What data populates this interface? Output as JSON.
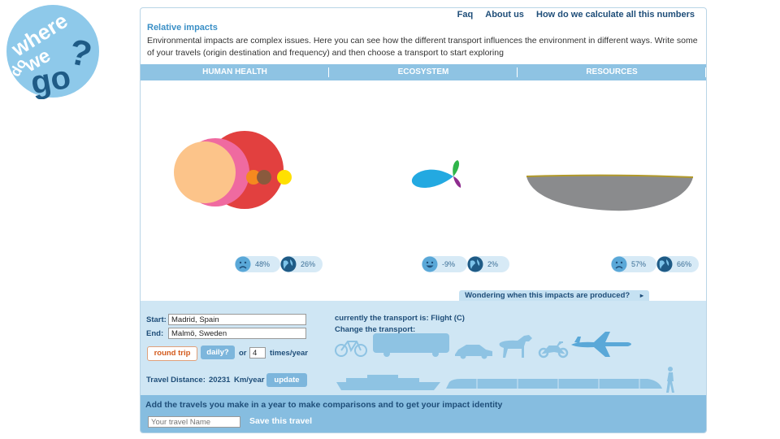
{
  "logo": {
    "words": [
      "where",
      "do",
      "we",
      "go",
      "?"
    ],
    "colors": {
      "circle": "#8ec9ea",
      "text": "#ffffff",
      "dark": "#1f5b86"
    }
  },
  "nav": {
    "faq": "Faq",
    "about": "About us",
    "how": "How do we calculate all this numbers"
  },
  "title": "Relative impacts",
  "intro": "Environmental impacts are complex issues. Here you can see how the different transport influences the environment in different ways. Write some of your travels (origin destination and frequency) and then choose a transport to start exploring",
  "tabs": [
    "HUMAN HEALTH",
    "ECOSYSTEM",
    "RESOURCES"
  ],
  "indicators": [
    {
      "face": "sad-face-icon",
      "face_value": "48%",
      "globe_value": "26%"
    },
    {
      "face": "happy-face-icon",
      "face_value": "-9%",
      "globe_value": "2%"
    },
    {
      "face": "sad-face-icon",
      "face_value": "57%",
      "globe_value": "66%"
    }
  ],
  "wonder": "Wondering when this impacts are produced?",
  "form": {
    "start_label": "Start:",
    "start_value": "Madrid, Spain",
    "end_label": "End:",
    "end_value": "Malmö, Sweden",
    "round_trip": "round trip",
    "daily": "daily?",
    "or": "or",
    "times_value": "4",
    "times_label": "times/year",
    "distance_label": "Travel Distance:",
    "distance_value": "20231",
    "distance_unit": "Km/year",
    "update": "update"
  },
  "transport": {
    "current": "currently the transport is: Flight (C)",
    "change": "Change the transport:",
    "icons": [
      "bicycle-icon",
      "bus-icon",
      "car-icon",
      "horse-icon",
      "motorcycle-icon",
      "airplane-icon",
      "ship-icon",
      "train-icon",
      "walking-person-icon"
    ]
  },
  "footer": {
    "text": "Add the travels you make in a year to make comparisons and to get your impact identity",
    "placeholder": "Your travel Name",
    "save": "Save this travel"
  },
  "colors": {
    "accent": "#3a8fc6",
    "tab_bar": "#8ec3e3",
    "lower_bg": "#cfe6f4",
    "footer_bg": "#86bde0",
    "transport_icon": "#8ec3e3"
  }
}
